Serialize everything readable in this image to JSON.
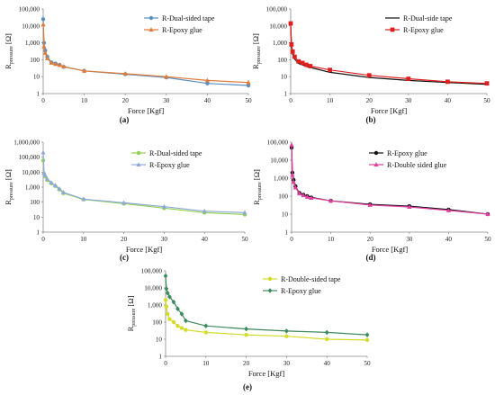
{
  "figure_panels": [
    {
      "key": "a",
      "caption": "(a)"
    },
    {
      "key": "b",
      "caption": "(b)"
    },
    {
      "key": "c",
      "caption": "(c)"
    },
    {
      "key": "d",
      "caption": "(d)"
    },
    {
      "key": "e",
      "caption": "(e)"
    }
  ],
  "chart_data": [
    {
      "type": "line",
      "panel": "(a)",
      "xlabel": "Force [Kgf]",
      "ylabel_main": "R",
      "ylabel_sub": "pressure",
      "ylabel_unit": "[Ω]",
      "y_scale": "log",
      "ylim": [
        1,
        100000
      ],
      "xlim": [
        0,
        50
      ],
      "x_ticks": [
        0,
        10,
        20,
        30,
        40,
        50
      ],
      "y_ticks": [
        "1",
        "10",
        "100",
        "1,000",
        "10,000",
        "100,000"
      ],
      "grid": false,
      "legend_position": "top-right",
      "series": [
        {
          "name": "R-Dual-sided tape",
          "color": "#5b8fc2",
          "marker": "circle",
          "x": [
            0,
            0.2,
            0.5,
            1,
            2,
            3,
            4,
            5,
            10,
            20,
            30,
            40,
            50
          ],
          "y": [
            25000,
            1000,
            350,
            150,
            70,
            60,
            50,
            38,
            22,
            14,
            9,
            4,
            3
          ]
        },
        {
          "name": "R-Epoxy glue",
          "color": "#e07b39",
          "marker": "triangle",
          "x": [
            0,
            0.2,
            0.5,
            1,
            2,
            3,
            4,
            5,
            10,
            20,
            30,
            40,
            50
          ],
          "y": [
            12000,
            600,
            250,
            120,
            65,
            55,
            48,
            40,
            22,
            15,
            10,
            6,
            4.5
          ]
        }
      ]
    },
    {
      "type": "line",
      "panel": "(b)",
      "xlabel": "Force [Kgf]",
      "ylabel_main": "R",
      "ylabel_sub": "pressure",
      "ylabel_unit": "[Ω]",
      "y_scale": "log",
      "ylim": [
        1,
        100000
      ],
      "xlim": [
        0,
        50
      ],
      "x_ticks": [
        0,
        10,
        20,
        30,
        40,
        50
      ],
      "y_ticks": [
        "1",
        "10",
        "100",
        "1,000",
        "10,000",
        "100,000"
      ],
      "grid": false,
      "legend_position": "top-right",
      "series": [
        {
          "name": "R-Dual-side tape",
          "color": "#111111",
          "marker": "none",
          "x": [
            0,
            0.2,
            0.5,
            1,
            2,
            3,
            4,
            5,
            10,
            20,
            30,
            40,
            50
          ],
          "y": [
            9000,
            600,
            200,
            110,
            60,
            50,
            40,
            35,
            18,
            9,
            6,
            4.5,
            3.5
          ]
        },
        {
          "name": "R-Epoxy glue",
          "color": "#e02020",
          "marker": "square",
          "x": [
            0,
            0.2,
            0.5,
            1,
            2,
            3,
            4,
            5,
            10,
            20,
            30,
            40,
            50
          ],
          "y": [
            14000,
            800,
            300,
            150,
            80,
            65,
            50,
            42,
            25,
            12,
            7.5,
            5,
            4
          ]
        }
      ]
    },
    {
      "type": "line",
      "panel": "(c)",
      "xlabel": "Force [Kgf]",
      "ylabel_main": "R",
      "ylabel_sub": "pressure",
      "ylabel_unit": "[Ω]",
      "y_scale": "log",
      "ylim": [
        1,
        1000000
      ],
      "xlim": [
        0,
        50
      ],
      "x_ticks": [
        0,
        10,
        20,
        30,
        40,
        50
      ],
      "y_ticks": [
        "1",
        "10",
        "100",
        "1,000",
        "10,000",
        "100,000",
        "1,000,000"
      ],
      "grid": false,
      "legend_position": "top-right",
      "series": [
        {
          "name": "R-Dual-sided tape",
          "color": "#8fd14f",
          "marker": "circle",
          "x": [
            0,
            0.2,
            0.5,
            1,
            2,
            3,
            4,
            5,
            10,
            20,
            30,
            40,
            50
          ],
          "y": [
            60000,
            8000,
            5000,
            3000,
            1800,
            1200,
            700,
            400,
            150,
            80,
            40,
            20,
            15
          ]
        },
        {
          "name": "R-Epoxy glue",
          "color": "#8fa9dc",
          "marker": "triangle",
          "x": [
            0,
            0.2,
            0.5,
            1,
            2,
            3,
            4,
            5,
            10,
            20,
            30,
            40,
            50
          ],
          "y": [
            200000,
            9000,
            6000,
            3500,
            2000,
            1300,
            800,
            450,
            160,
            90,
            50,
            25,
            20
          ]
        }
      ]
    },
    {
      "type": "line",
      "panel": "(d)",
      "xlabel": "Force [Kgf]",
      "ylabel_main": "R",
      "ylabel_sub": "pressure",
      "ylabel_unit": "[Ω]",
      "y_scale": "log",
      "ylim": [
        1,
        100000
      ],
      "xlim": [
        0,
        50
      ],
      "x_ticks": [
        0,
        10,
        20,
        30,
        40,
        50
      ],
      "y_ticks": [
        "1",
        "10",
        "100",
        "1,000",
        "10,000",
        "100,000"
      ],
      "grid": false,
      "legend_position": "top-right",
      "series": [
        {
          "name": "R-Epoxy glue",
          "color": "#111111",
          "marker": "circle",
          "x": [
            0,
            0.2,
            0.5,
            1,
            2,
            3,
            4,
            5,
            10,
            20,
            30,
            40,
            50
          ],
          "y": [
            50000,
            2000,
            800,
            350,
            150,
            120,
            100,
            85,
            55,
            35,
            28,
            18,
            10
          ]
        },
        {
          "name": "R-Double sided glue",
          "color": "#e23fa0",
          "marker": "triangle",
          "x": [
            0,
            0.2,
            0.5,
            1,
            2,
            3,
            4,
            5,
            10,
            20,
            30,
            40,
            50
          ],
          "y": [
            70000,
            1500,
            600,
            300,
            140,
            110,
            90,
            80,
            55,
            32,
            25,
            16,
            10
          ]
        }
      ]
    },
    {
      "type": "line",
      "panel": "(e)",
      "xlabel": "Force [Kgf]",
      "ylabel_main": "R",
      "ylabel_sub": "pressure",
      "ylabel_unit": "[Ω]",
      "y_scale": "log",
      "ylim": [
        1,
        100000
      ],
      "xlim": [
        0,
        50
      ],
      "x_ticks": [
        0,
        10,
        20,
        30,
        40,
        50
      ],
      "y_ticks": [
        "1",
        "10",
        "100",
        "1,000",
        "10,000",
        "100,000"
      ],
      "grid": false,
      "legend_position": "top-right",
      "series": [
        {
          "name": "R-Double-sided tape",
          "color": "#d4dc2a",
          "marker": "circle",
          "x": [
            0,
            0.2,
            0.5,
            1,
            2,
            3,
            4,
            5,
            10,
            20,
            30,
            40,
            50
          ],
          "y": [
            2000,
            800,
            300,
            150,
            100,
            60,
            45,
            35,
            25,
            18,
            15,
            10,
            9
          ]
        },
        {
          "name": "R-Epoxy glue",
          "color": "#3d8a5f",
          "marker": "diamond",
          "x": [
            0,
            0.2,
            0.5,
            1,
            2,
            3,
            4,
            5,
            10,
            20,
            30,
            40,
            50
          ],
          "y": [
            50000,
            9000,
            5000,
            3000,
            1500,
            600,
            300,
            120,
            60,
            40,
            30,
            25,
            18
          ]
        }
      ]
    }
  ]
}
